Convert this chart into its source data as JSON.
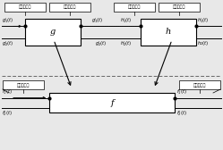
{
  "bg_color": "#e8e8e8",
  "box_color": "#ffffff",
  "box_edge": "#000000",
  "line_color": "#000000",
  "dashed_color": "#666666",
  "label_g": "g",
  "label_h": "h",
  "label_f": "f",
  "top_labels": [
    "输入参考面",
    "输出参考面",
    "输入参考面",
    "输出参考面"
  ],
  "bottom_label_left": "输入参考面",
  "bottom_label_right": "输出参考面"
}
